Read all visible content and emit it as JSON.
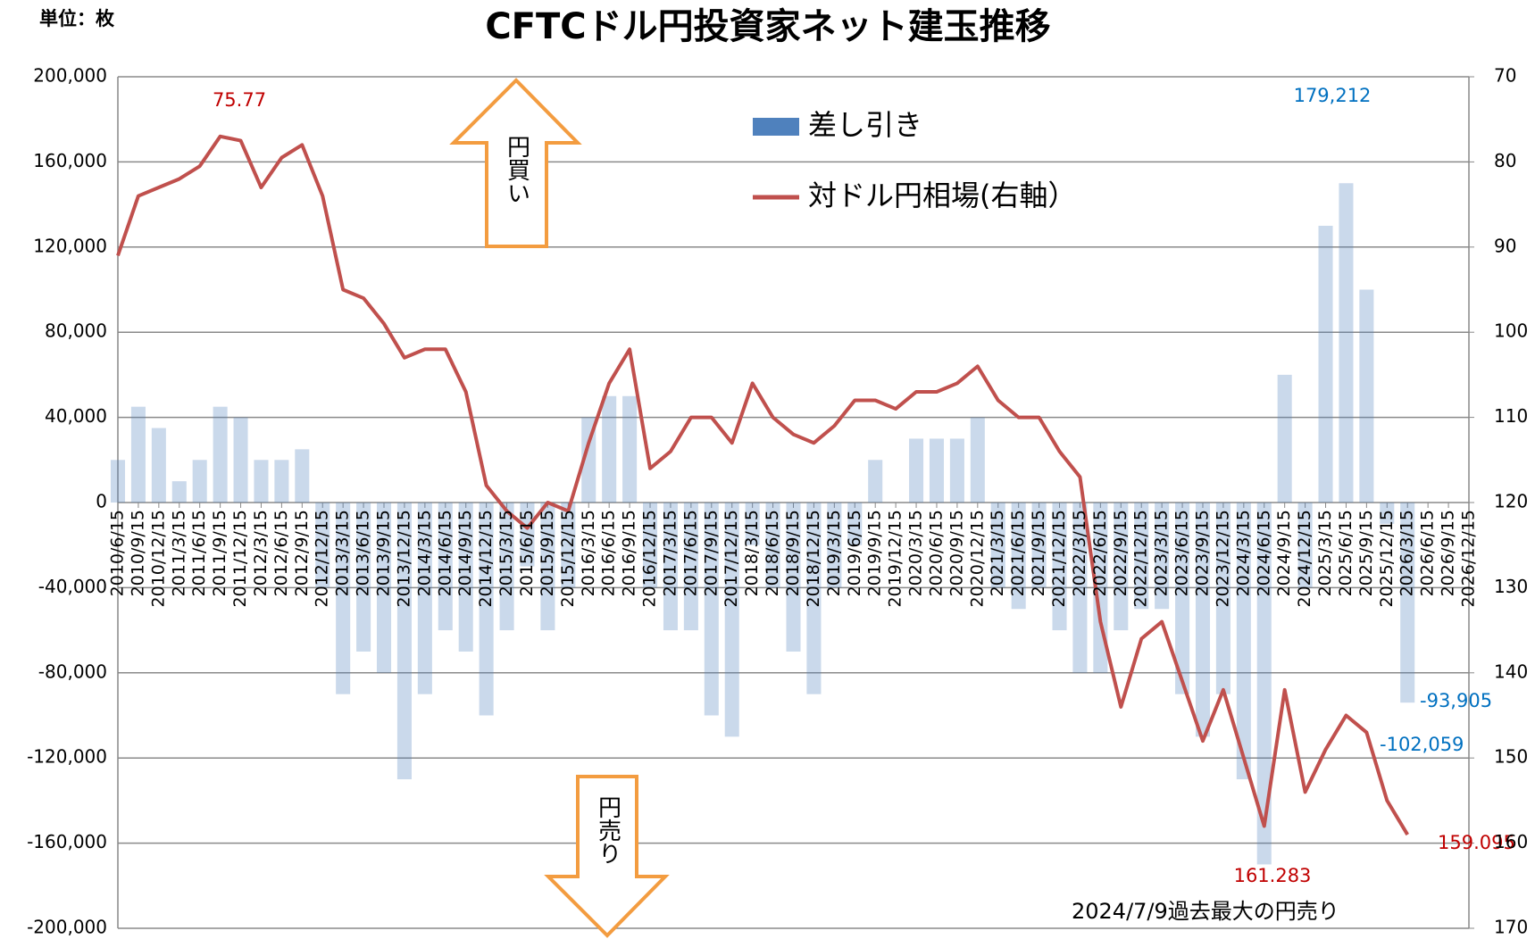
{
  "chart_data": {
    "type": "bar_line",
    "title": "CFTCドル円投資家ネット建玉推移",
    "unit_label": "単位：枚",
    "categories": [
      "2010/6/15",
      "2010/9/15",
      "2010/12/15",
      "2011/3/15",
      "2011/6/15",
      "2011/9/15",
      "2011/12/15",
      "2012/3/15",
      "2012/6/15",
      "2012/9/15",
      "2012/12/15",
      "2013/3/15",
      "2013/6/15",
      "2013/9/15",
      "2013/12/15",
      "2014/3/15",
      "2014/6/15",
      "2014/9/15",
      "2014/12/15",
      "2015/3/15",
      "2015/6/15",
      "2015/9/15",
      "2015/12/15",
      "2016/3/15",
      "2016/6/15",
      "2016/9/15",
      "2016/12/15",
      "2017/3/15",
      "2017/6/15",
      "2017/9/15",
      "2017/12/15",
      "2018/3/15",
      "2018/6/15",
      "2018/9/15",
      "2018/12/15",
      "2019/3/15",
      "2019/6/15",
      "2019/9/15",
      "2019/12/15",
      "2020/3/15",
      "2020/6/15",
      "2020/9/15",
      "2020/12/15",
      "2021/3/15",
      "2021/6/15",
      "2021/9/15",
      "2021/12/15",
      "2022/3/15",
      "2022/6/15",
      "2022/9/15",
      "2022/12/15",
      "2023/3/15",
      "2023/6/15",
      "2023/9/15",
      "2023/12/15",
      "2024/3/15",
      "2024/6/15",
      "2024/9/15",
      "2024/12/15",
      "2025/3/15",
      "2025/6/15",
      "2025/9/15",
      "2025/12/15",
      "2026/3/15",
      "2026/6/15",
      "2026/9/15",
      "2026/12/15"
    ],
    "series": [
      {
        "name": "差し引き",
        "color": "#4f81bd",
        "type": "bar",
        "values": [
          20000,
          45000,
          35000,
          10000,
          20000,
          45000,
          40000,
          20000,
          20000,
          25000,
          -40000,
          -90000,
          -70000,
          -80000,
          -130000,
          -90000,
          -60000,
          -70000,
          -100000,
          -60000,
          -30000,
          -60000,
          -40000,
          40000,
          50000,
          50000,
          -40000,
          -60000,
          -60000,
          -100000,
          -110000,
          -20000,
          -40000,
          -70000,
          -90000,
          -40000,
          -20000,
          20000,
          0,
          30000,
          30000,
          30000,
          40000,
          -40000,
          -50000,
          -40000,
          -60000,
          -80000,
          -80000,
          -60000,
          -50000,
          -50000,
          -90000,
          -110000,
          -90000,
          -130000,
          -170000,
          60000,
          -40000,
          130000,
          150000,
          100000,
          -10000,
          -94000,
          null,
          null,
          null
        ]
      },
      {
        "name": "対ドル円相場(右軸）",
        "color": "#c0504d",
        "type": "line",
        "axis": "y2",
        "values": [
          91,
          84,
          83,
          82,
          80.5,
          77,
          77.5,
          83,
          79.5,
          78,
          84,
          95,
          96,
          99,
          103,
          102,
          102,
          107,
          118,
          121,
          123,
          120,
          121,
          113,
          106,
          102,
          116,
          114,
          110,
          110,
          113,
          106,
          110,
          112,
          113,
          111,
          108,
          108,
          109,
          107,
          107,
          106,
          104,
          108,
          110,
          110,
          114,
          117,
          134,
          144,
          136,
          134,
          141,
          148,
          142,
          150,
          158,
          142,
          154,
          149,
          145,
          147,
          155,
          159,
          null,
          null,
          null
        ]
      }
    ],
    "ylim": [
      -200000,
      200000
    ],
    "yticks": [
      {
        "value": -200000,
        "label": "-200,000"
      },
      {
        "value": -160000,
        "label": "-160,000"
      },
      {
        "value": -120000,
        "label": "-120,000"
      },
      {
        "value": -80000,
        "label": "-80,000"
      },
      {
        "value": -40000,
        "label": "-40,000"
      },
      0,
      {
        "value": 40000,
        "label": "40,000"
      },
      {
        "value": 80000,
        "label": "80,000"
      },
      {
        "value": 120000,
        "label": "120,000"
      },
      {
        "value": 160000,
        "label": "160,000"
      },
      {
        "value": 200000,
        "label": "200,000"
      }
    ],
    "y2lim": [
      170,
      70
    ],
    "y2ticks": [
      70,
      80,
      90,
      100,
      110,
      120,
      130,
      140,
      150,
      160,
      170
    ],
    "grid": true,
    "annotations": {
      "peak_rate": "75.77",
      "peak_long": "179,212",
      "recent_1": "-93,905",
      "recent_2": "-102,059",
      "low_rate": "161.283",
      "last_rate": "159.095",
      "record_note": "2024/7/9過去最大の円売り",
      "arrow_buy": "円買い",
      "arrow_sell": "円売り"
    }
  }
}
